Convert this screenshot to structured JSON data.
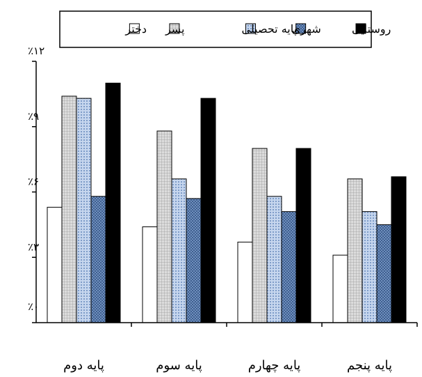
{
  "chart_data": {
    "type": "bar",
    "categories": [
      "پایه دوم",
      "پایه سوم",
      "پایه چهارم",
      "پایه پنجم"
    ],
    "series": [
      {
        "name": "دختر",
        "values": [
          0.053,
          0.044,
          0.037,
          0.031
        ],
        "color": "#ffffff",
        "pattern": "none"
      },
      {
        "name": "پسر",
        "values": [
          0.104,
          0.088,
          0.08,
          0.066
        ],
        "color": "#d9d9d9",
        "pattern": "grid-fine"
      },
      {
        "name": "پایه تحصیلی",
        "values": [
          0.103,
          0.066,
          0.058,
          0.051
        ],
        "color": "#b0c6e6",
        "pattern": "grid-dots"
      },
      {
        "name": "شهری",
        "values": [
          0.058,
          0.057,
          0.051,
          0.045
        ],
        "color": "#5b7fae",
        "pattern": "checker"
      },
      {
        "name": "روستایی",
        "values": [
          0.11,
          0.103,
          0.08,
          0.067
        ],
        "color": "#000000",
        "pattern": "none"
      }
    ],
    "ytick_labels": [
      "٪۰",
      "٪۳",
      "٪۶",
      "٪۹",
      "٪۱۲"
    ],
    "ylim": [
      0,
      0.12
    ],
    "grid": false,
    "legend_position": "top"
  }
}
